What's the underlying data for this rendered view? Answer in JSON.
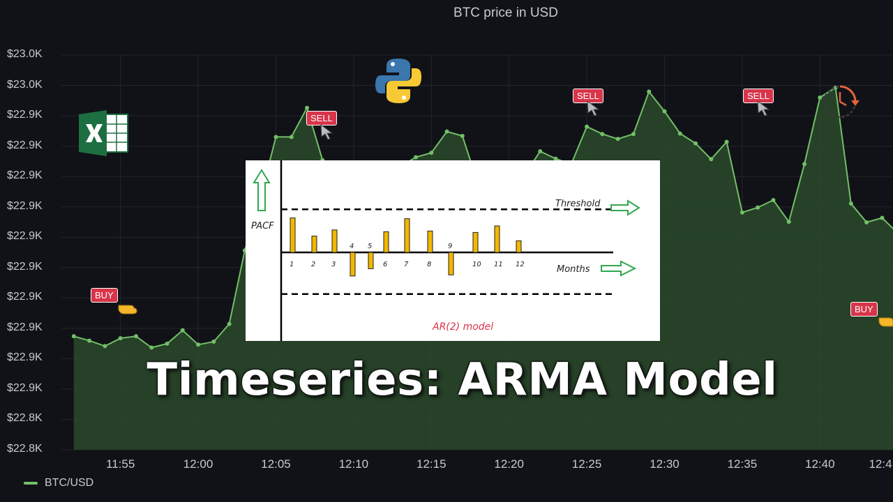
{
  "chart_data": {
    "type": "area",
    "title": "BTC price in USD",
    "y_ticks": [
      "$23.0K",
      "$23.0K",
      "$22.9K",
      "$22.9K",
      "$22.9K",
      "$22.9K",
      "$22.9K",
      "$22.9K",
      "$22.9K",
      "$22.9K",
      "$22.9K",
      "$22.9K",
      "$22.8K",
      "$22.8K"
    ],
    "x_ticks": [
      "11:55",
      "12:00",
      "12:05",
      "12:10",
      "12:15",
      "12:20",
      "12:25",
      "12:30",
      "12:35",
      "12:40",
      "12:4"
    ],
    "legend": "BTC/USD",
    "series": [
      {
        "name": "BTC/USD",
        "color": "#73bf69",
        "x_min": [
          52,
          53,
          54,
          55,
          56,
          57,
          58,
          59,
          60,
          61,
          62,
          63,
          64,
          65,
          66,
          67,
          68,
          69,
          70,
          71,
          72,
          73,
          74,
          75,
          76,
          77,
          78,
          79,
          80,
          81,
          82,
          83,
          84,
          85,
          86,
          87,
          88,
          89,
          90,
          91,
          92,
          93,
          94,
          95,
          96,
          97,
          98,
          99,
          100,
          101,
          102,
          103,
          104,
          105,
          106,
          107,
          108,
          109
        ],
        "values": [
          22883.0,
          22882.1,
          22881.0,
          22882.6,
          22883.0,
          22880.7,
          22881.5,
          22884.2,
          22881.3,
          22881.9,
          22885.5,
          22900.4,
          22911.0,
          22923.4,
          22923.4,
          22929.3,
          22918.7,
          22907.3,
          22906.2,
          22902.4,
          22904.8,
          22917.4,
          22919.3,
          22920.2,
          22924.5,
          22923.6,
          22913.9,
          22917.4,
          22917.0,
          22915.7,
          22920.5,
          22919.0,
          22917.9,
          22925.5,
          22924.0,
          22923.0,
          22924.0,
          22932.6,
          22928.6,
          22924.1,
          22922.1,
          22918.9,
          22922.4,
          22908.1,
          22909.1,
          22910.6,
          22906.2,
          22917.9,
          22931.4,
          22933.4,
          22909.9,
          22906.1,
          22907.0,
          22903.9,
          22903.3,
          22884.0,
          22880.0,
          22874.7
        ]
      }
    ],
    "tags": [
      {
        "label": "BUY",
        "kind": "buy"
      },
      {
        "label": "SELL",
        "kind": "sell"
      },
      {
        "label": "SELL",
        "kind": "sell"
      },
      {
        "label": "SELL",
        "kind": "sell"
      },
      {
        "label": "BUY",
        "kind": "buy"
      }
    ]
  },
  "overlay": {
    "title": "Timeseries: ARMA Model"
  },
  "pacf": {
    "ylabel": "PACF",
    "threshold_label": "Threshold",
    "months_label": "Months",
    "model_label": "AR(2) model",
    "lags": [
      "1",
      "2",
      "3",
      "4",
      "5",
      "6",
      "7",
      "8",
      "9",
      "10",
      "11",
      "12"
    ],
    "values": [
      0.95,
      0.45,
      0.62,
      -0.65,
      -0.45,
      0.57,
      0.93,
      0.59,
      -0.62,
      0.55,
      0.73,
      0.32
    ],
    "threshold": 0.85
  },
  "icons": {
    "python": "python-logo-icon",
    "excel": "excel-logo-icon",
    "clock": "clock-history-icon",
    "cursor": "cursor-arrow-icon",
    "hand": "pointing-hand-icon"
  },
  "colors": {
    "background": "#111217",
    "line": "#73bf69",
    "fill": "#2a4a2a",
    "tag": "#d8344a",
    "bar": "#f2b700"
  }
}
